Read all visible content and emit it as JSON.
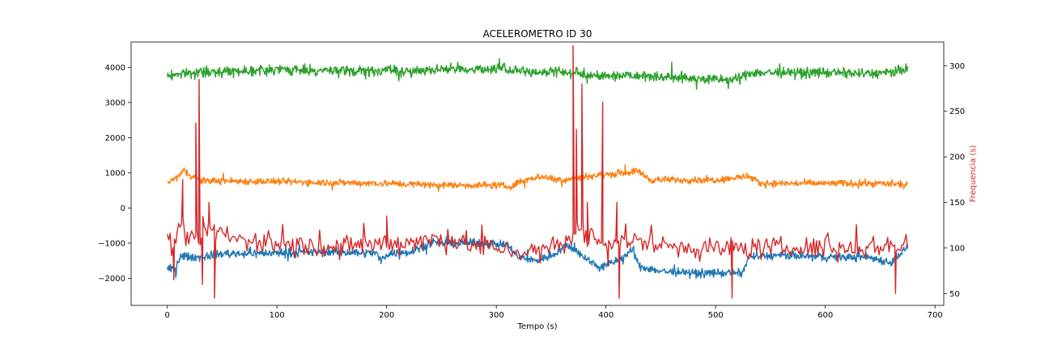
{
  "chart_data": {
    "type": "line",
    "title": "ACELEROMETRO ID 30",
    "xlabel": "Tempo (s)",
    "ylabel": "",
    "ylabel_right": "Frequencia (s)",
    "xlim": [
      -33,
      708
    ],
    "ylim": [
      -2770,
      4720
    ],
    "ylim_right": [
      37,
      326
    ],
    "x_ticks": [
      0,
      100,
      200,
      300,
      400,
      500,
      600,
      700
    ],
    "y_ticks": [
      -2000,
      -1000,
      0,
      1000,
      2000,
      3000,
      4000
    ],
    "y_ticks_right": [
      50,
      100,
      150,
      200,
      250,
      300
    ],
    "grid": false,
    "colors": {
      "x_axis": "#2ca02c",
      "y_axis": "#ff7f0e",
      "z_axis": "#1f77b4",
      "frequency": "#d62728",
      "right_label": "#d62728"
    },
    "series": [
      {
        "axis": "left",
        "color": "#2ca02c",
        "noise": 110,
        "x": [
          0,
          10,
          30,
          60,
          100,
          150,
          190,
          200,
          215,
          240,
          280,
          310,
          330,
          350,
          365,
          380,
          400,
          420,
          440,
          470,
          500,
          520,
          530,
          560,
          600,
          640,
          660,
          675
        ],
        "values": [
          3750,
          3820,
          3850,
          3900,
          3930,
          3900,
          3880,
          3950,
          3850,
          3950,
          3950,
          3950,
          3850,
          3900,
          3850,
          3800,
          3750,
          3800,
          3750,
          3700,
          3650,
          3650,
          3850,
          3850,
          3850,
          3820,
          3850,
          3950
        ]
      },
      {
        "axis": "left",
        "color": "#ff7f0e",
        "noise": 75,
        "x": [
          0,
          10,
          15,
          30,
          100,
          200,
          250,
          300,
          315,
          320,
          340,
          360,
          380,
          400,
          430,
          440,
          500,
          530,
          540,
          600,
          650,
          675
        ],
        "values": [
          700,
          900,
          1050,
          780,
          750,
          700,
          650,
          650,
          600,
          750,
          900,
          800,
          900,
          950,
          1050,
          800,
          800,
          900,
          700,
          700,
          700,
          650
        ]
      },
      {
        "axis": "left",
        "color": "#1f77b4",
        "noise": 90,
        "x": [
          0,
          8,
          12,
          20,
          30,
          50,
          100,
          150,
          190,
          195,
          200,
          210,
          220,
          240,
          260,
          290,
          310,
          320,
          335,
          350,
          365,
          380,
          395,
          410,
          425,
          430,
          450,
          480,
          500,
          525,
          530,
          560,
          600,
          640,
          660,
          675
        ],
        "values": [
          -1750,
          -1700,
          -1350,
          -1400,
          -1400,
          -1300,
          -1280,
          -1250,
          -1280,
          -1500,
          -1300,
          -1280,
          -1250,
          -1000,
          -1000,
          -1000,
          -1050,
          -1400,
          -1500,
          -1350,
          -1050,
          -1400,
          -1700,
          -1500,
          -1200,
          -1650,
          -1800,
          -1850,
          -1850,
          -1850,
          -1380,
          -1350,
          -1400,
          -1400,
          -1550,
          -1100
        ]
      },
      {
        "axis": "right",
        "color": "#d62728",
        "noise": 9,
        "x": [
          0,
          5,
          10,
          20,
          28,
          35,
          45,
          60,
          100,
          150,
          200,
          250,
          300,
          340,
          360,
          370,
          380,
          400,
          420,
          440,
          480,
          520,
          560,
          600,
          640,
          675
        ],
        "values": [
          115,
          95,
          125,
          110,
          105,
          115,
          120,
          110,
          105,
          100,
          105,
          110,
          100,
          95,
          105,
          115,
          110,
          105,
          110,
          105,
          100,
          100,
          100,
          100,
          100,
          105
        ],
        "spikes": [
          {
            "x": 6,
            "y": 65
          },
          {
            "x": 14,
            "y": 175
          },
          {
            "x": 26,
            "y": 237
          },
          {
            "x": 29,
            "y": 285
          },
          {
            "x": 32,
            "y": 60
          },
          {
            "x": 38,
            "y": 150
          },
          {
            "x": 43,
            "y": 45
          },
          {
            "x": 200,
            "y": 135
          },
          {
            "x": 370,
            "y": 322
          },
          {
            "x": 373,
            "y": 230
          },
          {
            "x": 378,
            "y": 280
          },
          {
            "x": 383,
            "y": 150
          },
          {
            "x": 397,
            "y": 260
          },
          {
            "x": 402,
            "y": 80
          },
          {
            "x": 410,
            "y": 150
          },
          {
            "x": 412,
            "y": 45
          },
          {
            "x": 515,
            "y": 45
          },
          {
            "x": 664,
            "y": 50
          }
        ]
      }
    ]
  }
}
